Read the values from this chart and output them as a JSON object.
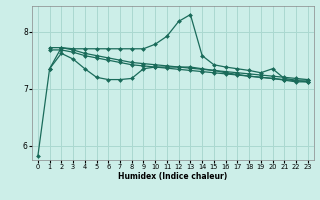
{
  "xlabel": "Humidex (Indice chaleur)",
  "bg_color": "#cceee8",
  "grid_color": "#aad8d0",
  "line_color": "#1a6b5a",
  "xlim": [
    -0.5,
    23.5
  ],
  "ylim": [
    5.75,
    8.45
  ],
  "yticks": [
    6,
    7,
    8
  ],
  "xticks": [
    0,
    1,
    2,
    3,
    4,
    5,
    6,
    7,
    8,
    9,
    10,
    11,
    12,
    13,
    14,
    15,
    16,
    17,
    18,
    19,
    20,
    21,
    22,
    23
  ],
  "series": [
    {
      "x": [
        0,
        1,
        2,
        3,
        4,
        5,
        6,
        7,
        8,
        9,
        10,
        11,
        12,
        13,
        14,
        15,
        16,
        17,
        18,
        19,
        20,
        21,
        22,
        23
      ],
      "y": [
        5.82,
        7.35,
        7.72,
        7.7,
        7.7,
        7.7,
        7.7,
        7.7,
        7.7,
        7.7,
        7.78,
        7.92,
        8.18,
        8.3,
        7.58,
        7.42,
        7.38,
        7.35,
        7.32,
        7.28,
        7.35,
        7.18,
        7.15,
        7.15
      ],
      "marker": "D",
      "markersize": 2.0,
      "linewidth": 0.9
    },
    {
      "x": [
        1,
        2,
        3,
        4,
        5,
        6,
        7,
        8,
        9,
        10,
        11,
        12,
        13,
        14,
        15,
        16,
        17,
        18,
        19,
        20,
        21,
        22,
        23
      ],
      "y": [
        7.72,
        7.72,
        7.68,
        7.62,
        7.58,
        7.54,
        7.5,
        7.46,
        7.44,
        7.42,
        7.4,
        7.38,
        7.36,
        7.34,
        7.32,
        7.3,
        7.28,
        7.26,
        7.24,
        7.22,
        7.2,
        7.18,
        7.16
      ],
      "marker": "D",
      "markersize": 2.0,
      "linewidth": 0.9
    },
    {
      "x": [
        1,
        2,
        3,
        4,
        5,
        6,
        7,
        8,
        9,
        10,
        11,
        12,
        13,
        14,
        15,
        16,
        17,
        18,
        19,
        20,
        21,
        22,
        23
      ],
      "y": [
        7.68,
        7.68,
        7.64,
        7.58,
        7.54,
        7.5,
        7.46,
        7.42,
        7.4,
        7.38,
        7.36,
        7.34,
        7.32,
        7.3,
        7.28,
        7.26,
        7.24,
        7.22,
        7.2,
        7.18,
        7.16,
        7.14,
        7.12
      ],
      "marker": "D",
      "markersize": 2.0,
      "linewidth": 0.9
    },
    {
      "x": [
        1,
        2,
        3,
        4,
        5,
        6,
        7,
        8,
        9,
        10,
        11,
        12,
        13,
        14,
        15,
        16,
        17,
        18,
        19,
        20,
        21,
        22,
        23
      ],
      "y": [
        7.35,
        7.62,
        7.52,
        7.35,
        7.2,
        7.16,
        7.16,
        7.18,
        7.35,
        7.38,
        7.38,
        7.38,
        7.38,
        7.35,
        7.32,
        7.28,
        7.25,
        7.22,
        7.2,
        7.18,
        7.15,
        7.12,
        7.12
      ],
      "marker": "D",
      "markersize": 2.0,
      "linewidth": 0.9
    }
  ]
}
